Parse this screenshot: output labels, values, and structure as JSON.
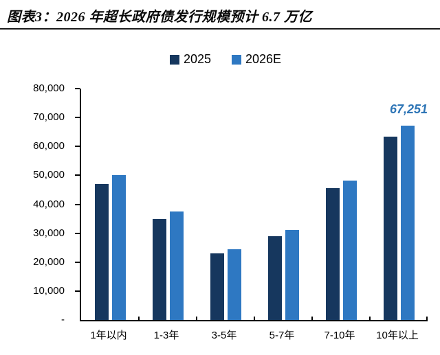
{
  "header": {
    "title": "图表3：2026 年超长政府债发行规模预计 6.7 万亿"
  },
  "legend": [
    {
      "label": "2025",
      "color": "#16375E"
    },
    {
      "label": "2026E",
      "color": "#2E78C2"
    }
  ],
  "chart_data": {
    "type": "bar",
    "title": "2026 年超长政府债发行规模预计 6.7 万亿",
    "categories": [
      "1年以内",
      "1-3年",
      "3-5年",
      "5-7年",
      "7-10年",
      "10年以上"
    ],
    "series": [
      {
        "name": "2025",
        "color": "#16375E",
        "values": [
          47000,
          35000,
          23000,
          29000,
          45500,
          63300
        ]
      },
      {
        "name": "2026E",
        "color": "#2E78C2",
        "values": [
          50000,
          37500,
          24500,
          31000,
          48300,
          67251
        ]
      }
    ],
    "xlabel": "",
    "ylabel": "",
    "ylim": [
      0,
      80000
    ],
    "ytick_labels": [
      "80,000",
      "70,000",
      "60,000",
      "50,000",
      "40,000",
      "30,000",
      "20,000",
      "10,000",
      "-"
    ],
    "grid": false,
    "legend_position": "top",
    "annotation": {
      "text": "67,251",
      "series": "2026E",
      "category": "10年以上",
      "color": "#2E75B6"
    }
  }
}
